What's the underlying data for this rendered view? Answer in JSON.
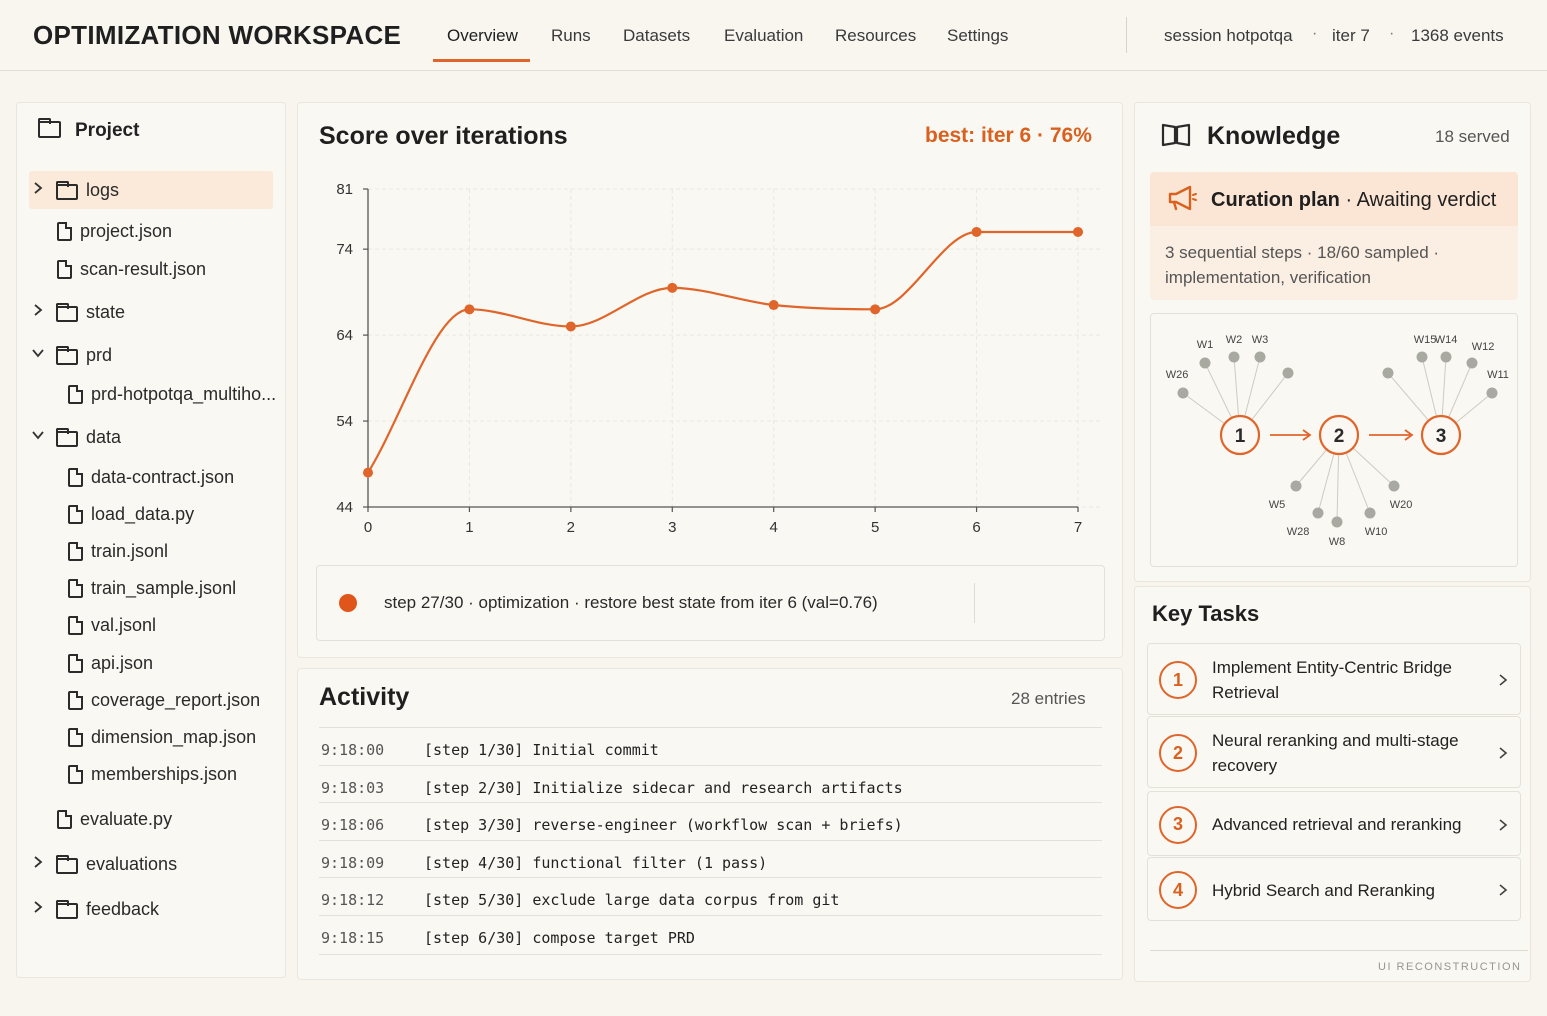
{
  "header": {
    "title": "OPTIMIZATION WORKSPACE",
    "tabs": [
      {
        "label": "Overview",
        "active": true
      },
      {
        "label": "Runs"
      },
      {
        "label": "Datasets"
      },
      {
        "label": "Evaluation"
      },
      {
        "label": "Resources"
      },
      {
        "label": "Settings"
      }
    ],
    "session": "session hotpotqa",
    "iter": "iter 7",
    "events": "1368 events",
    "sep": "·"
  },
  "tree": {
    "title": "Project",
    "items": [
      {
        "label": "logs",
        "type": "folder",
        "expanded": false,
        "selected": true
      },
      {
        "label": "project.json",
        "type": "file"
      },
      {
        "label": "scan-result.json",
        "type": "file"
      },
      {
        "label": "state",
        "type": "folder",
        "expanded": false
      },
      {
        "label": "prd",
        "type": "folder",
        "expanded": true
      },
      {
        "label": "prd-hotpotqa_multiho...",
        "type": "file"
      },
      {
        "label": "data",
        "type": "folder",
        "expanded": true
      },
      {
        "label": "data-contract.json",
        "type": "file"
      },
      {
        "label": "load_data.py",
        "type": "file"
      },
      {
        "label": "train.jsonl",
        "type": "file"
      },
      {
        "label": "train_sample.jsonl",
        "type": "file"
      },
      {
        "label": "val.jsonl",
        "type": "file"
      },
      {
        "label": "api.json",
        "type": "file"
      },
      {
        "label": "coverage_report.json",
        "type": "file"
      },
      {
        "label": "dimension_map.json",
        "type": "file"
      },
      {
        "label": "memberships.json",
        "type": "file"
      },
      {
        "label": "evaluate.py",
        "type": "file"
      },
      {
        "label": "evaluations",
        "type": "folder",
        "expanded": false
      },
      {
        "label": "feedback",
        "type": "folder",
        "expanded": false
      }
    ]
  },
  "chart": {
    "title": "Score over iterations",
    "best": "best: iter 6 · 76%",
    "accent": "#e0652a"
  },
  "chart_data": {
    "type": "line",
    "title": "Score over iterations",
    "x": [
      0,
      1,
      2,
      3,
      4,
      5,
      6,
      7
    ],
    "series": [
      {
        "values": [
          48,
          67,
          65,
          69.5,
          67.5,
          67,
          76,
          76
        ]
      }
    ],
    "xticks": [
      "0",
      "1",
      "2",
      "3",
      "4",
      "5",
      "6",
      "7"
    ],
    "yticks": [
      "44",
      "54",
      "64",
      "74",
      "81"
    ],
    "ylim": [
      44,
      81
    ],
    "xlim": [
      0,
      7
    ],
    "grid": true,
    "xlabel": "",
    "ylabel": ""
  },
  "status": {
    "text": "step 27/30  ·  optimization  ·  restore best state from iter 6 (val=0.76)"
  },
  "activity": {
    "title": "Activity",
    "count": "28 entries",
    "rows": [
      {
        "time": "9:18:00",
        "msg": "[step 1/30] Initial commit"
      },
      {
        "time": "9:18:03",
        "msg": "[step 2/30] Initialize sidecar and research artifacts"
      },
      {
        "time": "9:18:06",
        "msg": "[step 3/30] reverse-engineer (workflow scan + briefs)"
      },
      {
        "time": "9:18:09",
        "msg": "[step 4/30] functional filter (1 pass)"
      },
      {
        "time": "9:18:12",
        "msg": "[step 5/30] exclude large data corpus from git"
      },
      {
        "time": "9:18:15",
        "msg": "[step 6/30] compose target PRD"
      }
    ]
  },
  "knowledge": {
    "title": "Knowledge",
    "count": "18 served",
    "curation_title": "Curation plan",
    "curation_status": "Awaiting verdict",
    "curation_desc": "3 sequential steps · 18/60 sampled · implementation, verification",
    "steps": [
      "1",
      "2",
      "3"
    ],
    "workers": [
      "W1",
      "W2",
      "W3",
      "W26",
      "W15",
      "W14",
      "W12",
      "W11",
      "W5",
      "W20",
      "W28",
      "W10",
      "W8"
    ]
  },
  "tasks": {
    "title": "Key Tasks",
    "items": [
      {
        "num": "1",
        "label": "Implement Entity-Centric Bridge Retrieval"
      },
      {
        "num": "2",
        "label": "Neural reranking and multi-stage recovery"
      },
      {
        "num": "3",
        "label": "Advanced retrieval and reranking"
      },
      {
        "num": "4",
        "label": "Hybrid Search and Reranking"
      }
    ]
  },
  "footer": {
    "note": "UI RECONSTRUCTION"
  }
}
